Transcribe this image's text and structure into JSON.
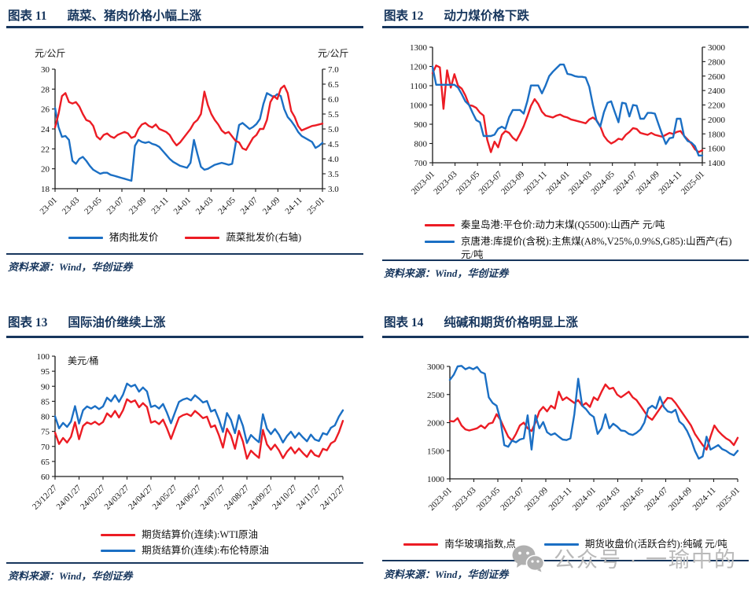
{
  "colors": {
    "navy": "#17365d",
    "red": "#ec1c24",
    "blue": "#1b6fc4",
    "axis": "#1a1a1a",
    "watermark": "#b0b0b0"
  },
  "watermark": {
    "icon": "wechat-icon",
    "text": "公众号 · 一瑜中的"
  },
  "panels": [
    {
      "tag": "图表 11",
      "title": "蔬菜、猪肉价格小幅上涨",
      "source": "资料来源：Wind，华创证券"
    },
    {
      "tag": "图表 12",
      "title": "动力煤价格下跌",
      "source": "资料来源：Wind，华创证券"
    },
    {
      "tag": "图表 13",
      "title": "国际油价继续上涨",
      "source": "资料来源：Wind，华创证券"
    },
    {
      "tag": "图表 14",
      "title": "纯碱和期货价格明显上涨",
      "source": "资料来源：Wind，华创证券"
    }
  ],
  "chart_data": [
    {
      "type": "line",
      "title": "蔬菜、猪肉价格小幅上涨",
      "grid": false,
      "legend_position": "bottom",
      "left_axis": {
        "min": 18,
        "max": 30,
        "step": 2,
        "decimals": 0,
        "unit": "元/公斤"
      },
      "right_axis": {
        "min": 3,
        "max": 7,
        "step": 0.5,
        "decimals": 1,
        "unit": "元/公斤"
      },
      "x_ticks": [
        "23-01",
        "23-03",
        "23-05",
        "23-07",
        "23-09",
        "23-11",
        "24-01",
        "24-03",
        "24-05",
        "24-07",
        "24-09",
        "24-11",
        "25-01"
      ],
      "series": [
        {
          "name": "猪肉批发价",
          "color_key": "blue",
          "axis": "left",
          "values": [
            26.1,
            24.2,
            23.2,
            23.3,
            22.9,
            20.8,
            20.5,
            21.0,
            21.2,
            20.8,
            20.3,
            19.9,
            19.7,
            19.5,
            19.6,
            19.6,
            19.4,
            19.3,
            19.2,
            19.1,
            19.0,
            18.9,
            18.8,
            22.3,
            22.9,
            22.7,
            22.6,
            22.7,
            22.5,
            22.4,
            22.2,
            21.8,
            21.4,
            21.0,
            20.7,
            20.5,
            20.3,
            20.2,
            20.1,
            20.6,
            22.9,
            21.5,
            20.2,
            19.9,
            20.0,
            20.2,
            20.4,
            20.5,
            20.6,
            20.5,
            20.4,
            20.5,
            22.5,
            24.4,
            24.6,
            24.3,
            24.0,
            24.2,
            24.5,
            25.0,
            26.5,
            27.6,
            27.4,
            27.2,
            27.5,
            27.3,
            26.0,
            25.2,
            24.8,
            24.3,
            23.7,
            23.3,
            23.1,
            22.9,
            22.7,
            22.1,
            22.3,
            22.6
          ]
        },
        {
          "name": "蔬菜批发价(右轴)",
          "color_key": "red",
          "axis": "right",
          "values": [
            5.05,
            5.5,
            6.1,
            6.2,
            5.9,
            5.85,
            5.9,
            5.75,
            5.5,
            5.3,
            5.25,
            5.1,
            4.75,
            4.65,
            4.8,
            4.85,
            4.75,
            4.7,
            4.8,
            4.85,
            4.9,
            4.85,
            4.7,
            4.75,
            5.0,
            5.15,
            5.2,
            5.1,
            5.05,
            5.15,
            5.0,
            4.95,
            4.9,
            4.8,
            4.6,
            4.45,
            4.55,
            4.7,
            4.85,
            5.0,
            5.2,
            5.3,
            5.5,
            6.25,
            5.8,
            5.5,
            5.3,
            5.15,
            4.95,
            4.85,
            4.9,
            4.75,
            4.6,
            4.55,
            4.35,
            4.3,
            4.5,
            4.7,
            4.8,
            5.0,
            5.0,
            5.3,
            5.9,
            6.1,
            6.0,
            6.35,
            6.45,
            6.2,
            5.6,
            5.4,
            5.1,
            4.95,
            5.0,
            5.05,
            5.1,
            5.12,
            5.15,
            5.18
          ]
        }
      ]
    },
    {
      "type": "line",
      "title": "动力煤价格下跌",
      "grid": false,
      "legend_position": "bottom",
      "left_axis": {
        "min": 700,
        "max": 1300,
        "step": 100,
        "decimals": 0
      },
      "right_axis": {
        "min": 1400,
        "max": 3000,
        "step": 200,
        "decimals": 0
      },
      "x_ticks": [
        "2023-01",
        "2023-03",
        "2023-05",
        "2023-07",
        "2023-09",
        "2023-11",
        "2024-01",
        "2024-03",
        "2024-05",
        "2024-07",
        "2024-09",
        "2024-11",
        "2025-01"
      ],
      "series": [
        {
          "name": "秦皇岛港:平仓价:动力末煤(Q5500):山西产 元/吨",
          "color_key": "red",
          "axis": "left",
          "values": [
            1165,
            1205,
            1195,
            980,
            1180,
            1090,
            1160,
            1100,
            1085,
            1050,
            1000,
            995,
            985,
            960,
            945,
            820,
            755,
            810,
            780,
            845,
            865,
            855,
            830,
            815,
            850,
            890,
            940,
            995,
            1030,
            1005,
            965,
            945,
            940,
            935,
            945,
            950,
            940,
            935,
            925,
            920,
            915,
            910,
            905,
            925,
            935,
            920,
            890,
            840,
            815,
            800,
            810,
            825,
            820,
            845,
            860,
            880,
            875,
            855,
            850,
            845,
            855,
            845,
            840,
            835,
            845,
            855,
            850,
            860,
            865,
            840,
            820,
            800,
            770,
            755,
            765
          ]
        },
        {
          "name": "京唐港:库提价(含税):主焦煤(A8%,V25%,0.9%S,G85):山西产(右) 元/吨",
          "color_key": "blue",
          "axis": "right",
          "values": [
            2730,
            2480,
            2480,
            2480,
            2480,
            2480,
            2480,
            2440,
            2350,
            2250,
            2200,
            2090,
            1990,
            1960,
            1770,
            1770,
            1770,
            1790,
            1870,
            1900,
            1870,
            2030,
            2130,
            2130,
            2130,
            2080,
            2250,
            2470,
            2470,
            2470,
            2360,
            2470,
            2600,
            2660,
            2710,
            2760,
            2760,
            2630,
            2620,
            2600,
            2590,
            2590,
            2580,
            2450,
            2200,
            1980,
            1900,
            2100,
            2230,
            2250,
            2100,
            1960,
            2230,
            2220,
            2040,
            2200,
            2190,
            2010,
            2010,
            2090,
            2090,
            2080,
            1930,
            1790,
            1660,
            1740,
            1750,
            2010,
            2010,
            1770,
            1700,
            1680,
            1630,
            1500,
            1500
          ]
        }
      ]
    },
    {
      "type": "line",
      "title": "国际油价继续上涨",
      "grid": false,
      "legend_position": "bottom",
      "left_axis": {
        "min": 60,
        "max": 100,
        "step": 5,
        "decimals": 0,
        "unit": "美元/桶"
      },
      "x_ticks": [
        "23/12/27",
        "24/01/27",
        "24/02/27",
        "24/03/27",
        "24/04/27",
        "24/05/27",
        "24/06/27",
        "24/07/27",
        "24/08/27",
        "24/09/27",
        "24/10/27",
        "24/11/27",
        "24/12/27"
      ],
      "series": [
        {
          "name": "期货结算价(连续):WTI原油",
          "color_key": "red",
          "axis": "left",
          "values": [
            74.6,
            70.8,
            72.8,
            71.3,
            73.2,
            78.1,
            72.4,
            76.8,
            78.0,
            77.4,
            78.2,
            77.2,
            78.1,
            81.0,
            79.8,
            81.8,
            79.6,
            82.0,
            85.7,
            84.7,
            85.3,
            83.0,
            84.4,
            83.1,
            77.9,
            78.4,
            77.4,
            78.9,
            76.0,
            72.5,
            76.1,
            79.6,
            80.4,
            80.8,
            80.1,
            81.8,
            80.7,
            79.4,
            79.9,
            76.4,
            77.0,
            73.7,
            69.6,
            75.9,
            73.6,
            69.2,
            75.2,
            71.6,
            65.9,
            68.6,
            67.3,
            66.2,
            75.5,
            70.7,
            68.9,
            70.6,
            68.7,
            66.1,
            68.2,
            69.7,
            67.7,
            69.3,
            67.8,
            66.5,
            68.7,
            67.1,
            66.6,
            69.2,
            68.7,
            71.0,
            71.8,
            74.7,
            78.5
          ]
        },
        {
          "name": "期货结算价(连续):布伦特原油",
          "color_key": "blue",
          "axis": "left",
          "values": [
            80.0,
            76.0,
            77.8,
            76.5,
            78.3,
            83.4,
            77.6,
            82.0,
            83.3,
            82.6,
            83.4,
            82.4,
            83.3,
            86.2,
            85.0,
            87.0,
            84.8,
            87.2,
            90.9,
            89.9,
            90.5,
            88.2,
            89.6,
            88.3,
            83.1,
            83.6,
            82.6,
            84.1,
            81.2,
            77.7,
            81.3,
            84.8,
            85.6,
            86.0,
            85.3,
            87.0,
            85.9,
            84.6,
            85.1,
            81.6,
            82.2,
            78.9,
            74.8,
            81.1,
            78.8,
            74.4,
            80.4,
            76.8,
            71.1,
            73.8,
            72.5,
            71.4,
            80.7,
            75.9,
            74.1,
            75.8,
            73.9,
            71.3,
            73.4,
            74.9,
            72.9,
            74.5,
            73.0,
            71.7,
            73.9,
            72.3,
            71.8,
            74.4,
            73.9,
            76.2,
            77.0,
            79.9,
            82.0
          ]
        }
      ]
    },
    {
      "type": "line",
      "title": "纯碱和期货价格明显上涨",
      "grid": false,
      "legend_position": "bottom",
      "left_axis": {
        "min": 1000,
        "max": 3000,
        "step": 500,
        "decimals": 0
      },
      "x_ticks": [
        "2023-01",
        "2023-03",
        "2023-05",
        "2023-07",
        "2023-09",
        "2023-11",
        "2024-01",
        "2024-03",
        "2024-05",
        "2024-07",
        "2024-09",
        "2024-11",
        "2025-01"
      ],
      "series": [
        {
          "name": "南华玻璃指数,点",
          "color_key": "red",
          "axis": "left",
          "values": [
            2030,
            2020,
            2080,
            1950,
            1880,
            1860,
            1880,
            1900,
            1950,
            1900,
            1980,
            2000,
            2150,
            2050,
            1900,
            1750,
            1680,
            1800,
            1950,
            2000,
            1900,
            1850,
            2000,
            2200,
            2280,
            2200,
            2300,
            2250,
            2550,
            2400,
            2450,
            2400,
            2350,
            2400,
            2300,
            2350,
            2280,
            2450,
            2400,
            2550,
            2680,
            2600,
            2620,
            2500,
            2450,
            2500,
            2550,
            2450,
            2400,
            2300,
            2200,
            2100,
            2050,
            2150,
            2250,
            2350,
            2440,
            2430,
            2350,
            2250,
            2150,
            2050,
            1950,
            1800,
            1700,
            1600,
            1520,
            1750,
            1950,
            1850,
            1780,
            1720,
            1680,
            1600,
            1730
          ]
        },
        {
          "name": "期货收盘价(活跃合约):纯碱 元/吨",
          "color_key": "blue",
          "axis": "left",
          "values": [
            2760,
            2850,
            3000,
            3010,
            2950,
            2980,
            2950,
            2990,
            2900,
            2870,
            2450,
            2350,
            2300,
            2050,
            1600,
            1570,
            1680,
            1650,
            1700,
            1720,
            2130,
            1520,
            2130,
            1900,
            2010,
            1830,
            1780,
            1810,
            1750,
            1700,
            1690,
            1720,
            2150,
            2780,
            2300,
            2240,
            2150,
            2100,
            1800,
            1900,
            2150,
            1900,
            1980,
            1930,
            1860,
            1850,
            1800,
            1780,
            1820,
            1880,
            2000,
            2250,
            2300,
            2250,
            2460,
            2280,
            2200,
            2180,
            2230,
            2020,
            1960,
            1850,
            1700,
            1500,
            1360,
            1400,
            1750,
            1520,
            1560,
            1600,
            1530,
            1500,
            1450,
            1420,
            1500
          ]
        }
      ]
    }
  ]
}
